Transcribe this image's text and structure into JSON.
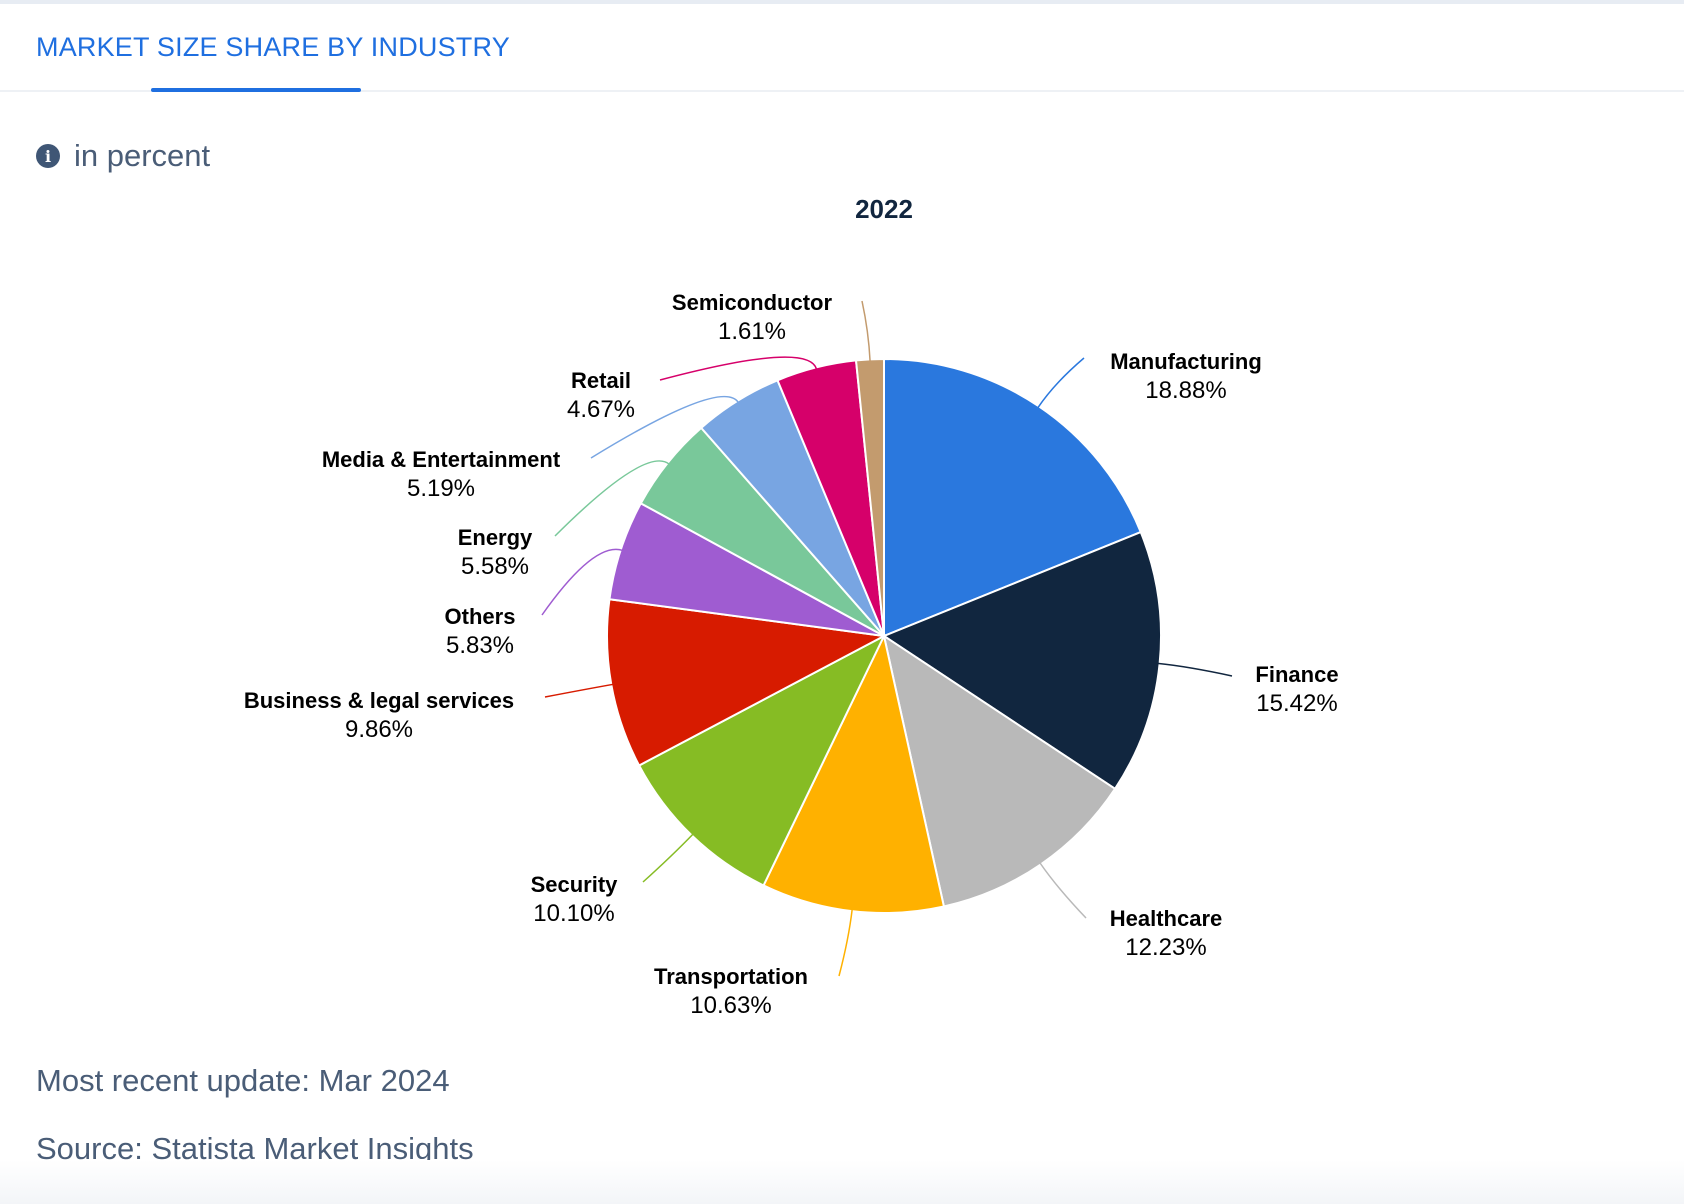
{
  "tab": {
    "label": "MARKET SIZE SHARE BY INDUSTRY"
  },
  "unit_label": "in percent",
  "footer": {
    "update": "Most recent update: Mar 2024",
    "source": "Source: Statista Market Insights"
  },
  "chart_data": {
    "type": "pie",
    "title": "2022",
    "categories": [
      "Manufacturing",
      "Finance",
      "Healthcare",
      "Transportation",
      "Security",
      "Business & legal services",
      "Others",
      "Energy",
      "Media & Entertainment",
      "Retail",
      "Semiconductor"
    ],
    "values": [
      18.88,
      15.42,
      12.23,
      10.63,
      10.1,
      9.86,
      5.83,
      5.58,
      5.19,
      4.67,
      1.61
    ],
    "value_labels": [
      "18.88%",
      "15.42%",
      "12.23%",
      "10.63%",
      "10.10%",
      "9.86%",
      "5.83%",
      "5.58%",
      "5.19%",
      "4.67%",
      "1.61%"
    ],
    "colors": [
      "#2a78de",
      "#11263f",
      "#b9b9b9",
      "#ffb100",
      "#86bc24",
      "#d71b00",
      "#9f5cd1",
      "#79c89a",
      "#78a5e2",
      "#d6006a",
      "#c39b6e"
    ],
    "unit": "percent"
  }
}
